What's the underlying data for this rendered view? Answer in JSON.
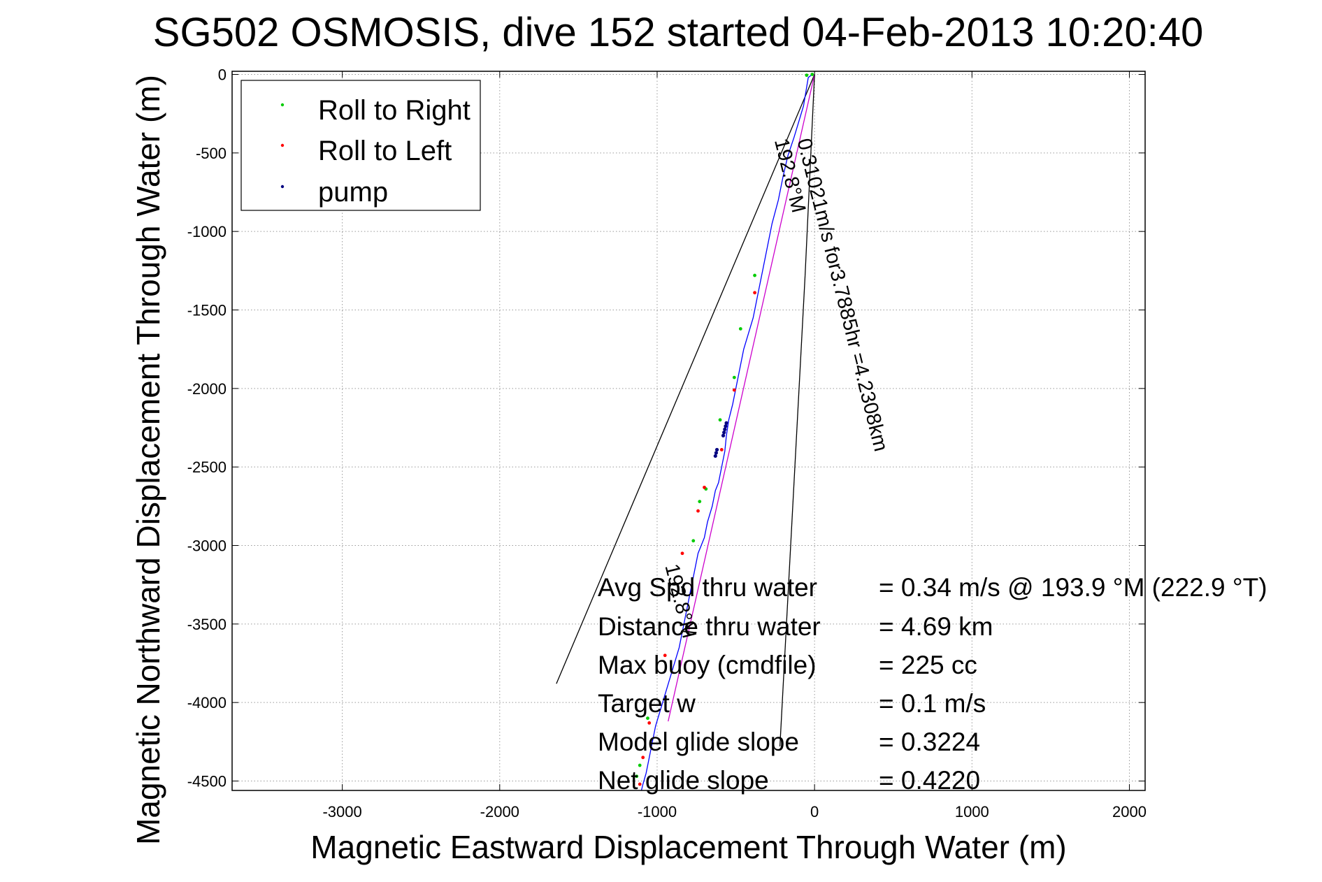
{
  "chart_data": {
    "type": "line",
    "title": "SG502 OSMOSIS, dive 152 started 04-Feb-2013 10:20:40",
    "xlabel": "Magnetic Eastward Displacement Through Water (m)",
    "ylabel": "Magnetic Northward Displacement Through Water (m)",
    "xlim": [
      -3700,
      2100
    ],
    "ylim": [
      -4560,
      20
    ],
    "xticks": [
      -3000,
      -2000,
      -1000,
      0,
      1000,
      2000
    ],
    "yticks": [
      0,
      -500,
      -1000,
      -1500,
      -2000,
      -2500,
      -3000,
      -3500,
      -4000,
      -4500
    ],
    "grid": true,
    "legend_position": "top-left",
    "legend": [
      {
        "label": "Roll to Right",
        "color": "#00cc00"
      },
      {
        "label": "Roll to Left",
        "color": "#ff0000"
      },
      {
        "label": "pump",
        "color": "#000080"
      }
    ],
    "series": [
      {
        "kind": "track",
        "color": "#0000ff",
        "x": [
          -15,
          -40,
          -70,
          -100,
          -130,
          -170,
          -200,
          -230,
          -270,
          -300,
          -330,
          -360,
          -390,
          -420,
          -450,
          -480,
          -500,
          -520,
          -545,
          -560,
          -570,
          -590,
          -610,
          -630,
          -650,
          -680,
          -700,
          -720,
          -740,
          -760,
          -790,
          -820,
          -840,
          -860,
          -890,
          -920,
          -950,
          -980,
          -1010,
          -1030,
          -1050,
          -1070,
          -1090,
          -1100
        ],
        "y": [
          0,
          -20,
          -200,
          -300,
          -400,
          -520,
          -650,
          -800,
          -950,
          -1100,
          -1250,
          -1400,
          -1550,
          -1650,
          -1750,
          -1900,
          -2000,
          -2100,
          -2200,
          -2300,
          -2400,
          -2500,
          -2600,
          -2650,
          -2750,
          -2850,
          -2950,
          -3000,
          -3050,
          -3150,
          -3300,
          -3450,
          -3550,
          -3650,
          -3750,
          -3850,
          -3950,
          -4050,
          -4150,
          -4250,
          -4350,
          -4450,
          -4520,
          -4560
        ]
      },
      {
        "kind": "straight-line fit",
        "color": "#cc00cc",
        "x": [
          0,
          -930
        ],
        "y": [
          0,
          -4120
        ]
      }
    ],
    "roll_right_points": {
      "x": [
        -15,
        -50,
        -380,
        -470,
        -510,
        -600,
        -690,
        -730,
        -770,
        -1060,
        -1110,
        -1130
      ],
      "y": [
        0,
        -5,
        -1280,
        -1620,
        -1930,
        -2200,
        -2640,
        -2720,
        -2970,
        -4100,
        -4400,
        -4470
      ]
    },
    "roll_left_points": {
      "x": [
        -380,
        -510,
        -590,
        -700,
        -740,
        -840,
        -950,
        -1050,
        -1090,
        -1110
      ],
      "y": [
        -1390,
        -2010,
        -2390,
        -2630,
        -2780,
        -3050,
        -3700,
        -4130,
        -4350,
        -4520
      ]
    },
    "pump_points": {
      "x": [
        -560,
        -565,
        -570,
        -575,
        -580,
        -620,
        -625,
        -630
      ],
      "y": [
        -2220,
        -2240,
        -2260,
        -2280,
        -2300,
        -2390,
        -2410,
        -2430
      ]
    },
    "sector_lines": [
      {
        "x": [
          0,
          -1640
        ],
        "y": [
          0,
          -3880
        ]
      },
      {
        "x": [
          0,
          -60
        ],
        "y": [
          0,
          -1280
        ]
      },
      {
        "x": [
          -60,
          -220
        ],
        "y": [
          -1280,
          -4280
        ]
      }
    ],
    "annotations": [
      {
        "text": "0.31021m/s for3.7885hr =4.2308km",
        "x": -110,
        "y": -420,
        "rotation": 76
      },
      {
        "text": "192.8°M",
        "x": -255,
        "y": -420,
        "rotation": 76
      },
      {
        "text": "192.8°M",
        "x": -950,
        "y": -3130,
        "rotation": 76
      }
    ]
  },
  "stats": [
    {
      "label": "Avg Spd thru water",
      "value": "=  0.34 m/s @ 193.9 °M (222.9 °T)"
    },
    {
      "label": "Distance thru water",
      "value": "=  4.69 km"
    },
    {
      "label": "Max buoy (cmdfile)",
      "value": "= 225 cc"
    },
    {
      "label": "Target w",
      "value": "= 0.1 m/s"
    },
    {
      "label": "Model glide slope",
      "value": "= 0.3224"
    },
    {
      "label": "Net glide slope",
      "value": "= 0.4220"
    }
  ]
}
